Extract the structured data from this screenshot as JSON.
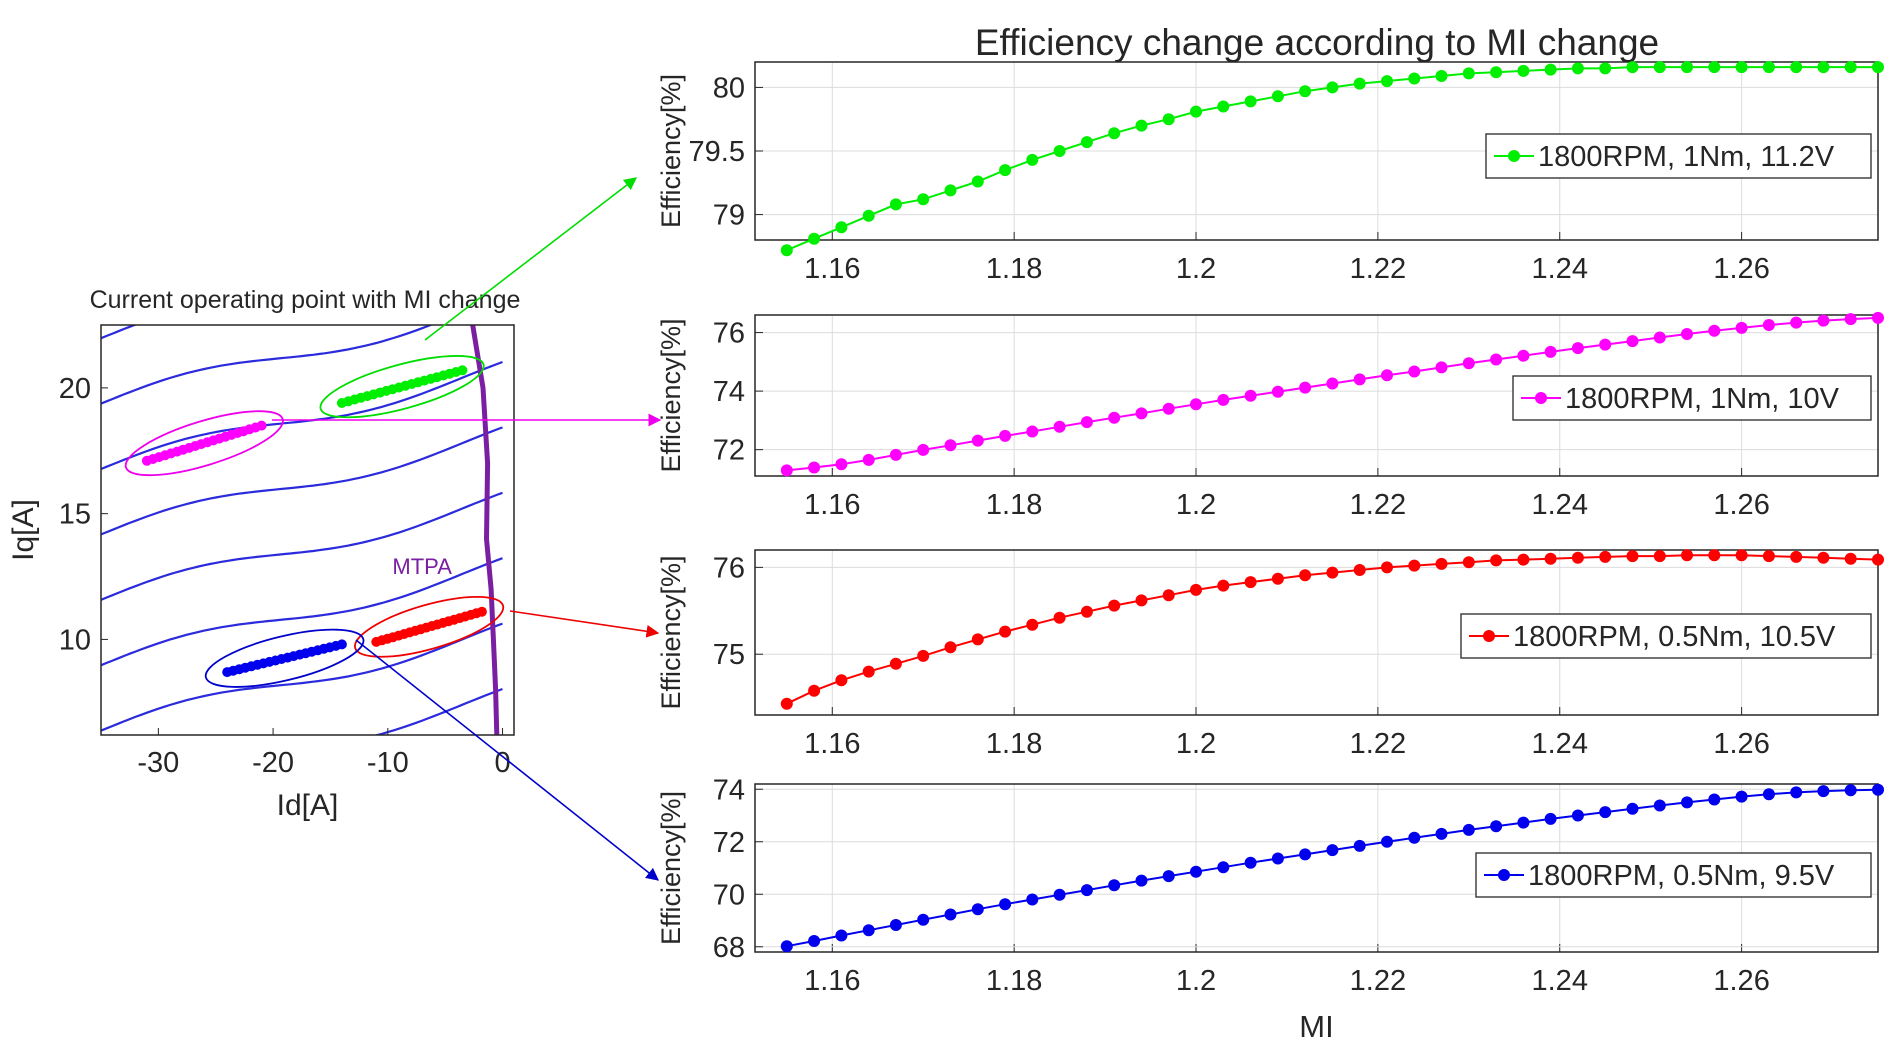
{
  "figure_title": "Efficiency change according to MI change",
  "chart_data": [
    {
      "id": "operating-point",
      "type": "line",
      "title": "Current operating point with MI change",
      "xlabel": "Id[A]",
      "ylabel": "Iq[A]",
      "xlim": [
        -35,
        1
      ],
      "ylim": [
        6.2,
        22.5
      ],
      "xticks": [
        -30,
        -20,
        -10,
        0
      ],
      "yticks": [
        10,
        15,
        20
      ],
      "contour_color": "#2b2bdd",
      "contour_offsets": [
        5.2,
        7.8,
        10.4,
        13.0,
        15.6,
        18.2,
        20.8,
        23.4,
        26.0,
        28.6
      ],
      "mtpa": {
        "label": "MTPA",
        "color": "#7b1fa2",
        "points": [
          [
            -2.6,
            22.5
          ],
          [
            -1.7,
            20
          ],
          [
            -1.3,
            17
          ],
          [
            -1.4,
            14
          ],
          [
            -1.0,
            12
          ],
          [
            -0.8,
            10
          ],
          [
            -0.6,
            8
          ],
          [
            -0.5,
            6.2
          ]
        ]
      },
      "highlights": [
        {
          "name": "green",
          "color": "#00ee00",
          "start": [
            -14,
            19.4
          ],
          "end": [
            -3.5,
            20.7
          ],
          "ellipse_color": "#00dd00"
        },
        {
          "name": "magenta",
          "color": "#ff00ff",
          "start": [
            -31,
            17.1
          ],
          "end": [
            -21,
            18.5
          ],
          "ellipse_color": "#ee00ee"
        },
        {
          "name": "red",
          "color": "#ff0000",
          "start": [
            -11,
            9.9
          ],
          "end": [
            -1.8,
            11.1
          ],
          "ellipse_color": "#ee0000"
        },
        {
          "name": "blue",
          "color": "#0000ee",
          "start": [
            -24,
            8.7
          ],
          "end": [
            -14,
            9.8
          ],
          "ellipse_color": "#0000cc"
        }
      ]
    },
    {
      "id": "eff-green",
      "type": "line",
      "xlabel": "",
      "ylabel": "Efficiency[%]",
      "xlim": [
        1.1515,
        1.275
      ],
      "ylim": [
        78.8,
        80.2
      ],
      "xticks": [
        1.16,
        1.18,
        1.2,
        1.22,
        1.24,
        1.26
      ],
      "xtick_labels": [
        "1.16",
        "1.18",
        "1.2",
        "1.22",
        "1.24",
        "1.26"
      ],
      "yticks": [
        79,
        79.5,
        80
      ],
      "ytick_labels": [
        "79",
        "79.5",
        "80"
      ],
      "series": [
        {
          "name": "1800RPM, 1Nm, 11.2V",
          "color": "#00ee00",
          "x_start": 1.155,
          "x_step": 0.003,
          "values": [
            78.72,
            78.81,
            78.9,
            78.99,
            79.08,
            79.12,
            79.19,
            79.26,
            79.35,
            79.43,
            79.5,
            79.57,
            79.64,
            79.7,
            79.75,
            79.81,
            79.85,
            79.89,
            79.93,
            79.97,
            80.0,
            80.03,
            80.05,
            80.07,
            80.09,
            80.11,
            80.12,
            80.13,
            80.14,
            80.15,
            80.15,
            80.16,
            80.16,
            80.16,
            80.16,
            80.16,
            80.16,
            80.16,
            80.16,
            80.16,
            80.16
          ]
        }
      ],
      "legend_position": "right"
    },
    {
      "id": "eff-magenta",
      "type": "line",
      "xlabel": "",
      "ylabel": "Efficiency[%]",
      "xlim": [
        1.1515,
        1.275
      ],
      "ylim": [
        71.1,
        76.6
      ],
      "xticks": [
        1.16,
        1.18,
        1.2,
        1.22,
        1.24,
        1.26
      ],
      "xtick_labels": [
        "1.16",
        "1.18",
        "1.2",
        "1.22",
        "1.24",
        "1.26"
      ],
      "yticks": [
        72,
        74,
        76
      ],
      "ytick_labels": [
        "72",
        "74",
        "76"
      ],
      "series": [
        {
          "name": "1800RPM, 1Nm, 10V",
          "color": "#ff00ff",
          "x_start": 1.155,
          "x_step": 0.003,
          "values": [
            71.29,
            71.39,
            71.5,
            71.65,
            71.82,
            71.99,
            72.15,
            72.31,
            72.47,
            72.62,
            72.78,
            72.94,
            73.09,
            73.24,
            73.4,
            73.55,
            73.7,
            73.84,
            73.98,
            74.12,
            74.26,
            74.4,
            74.54,
            74.67,
            74.81,
            74.95,
            75.08,
            75.21,
            75.34,
            75.47,
            75.59,
            75.71,
            75.83,
            75.95,
            76.06,
            76.16,
            76.26,
            76.34,
            76.41,
            76.46,
            76.5
          ]
        }
      ],
      "legend_position": "right"
    },
    {
      "id": "eff-red",
      "type": "line",
      "xlabel": "",
      "ylabel": "Efficiency[%]",
      "xlim": [
        1.1515,
        1.275
      ],
      "ylim": [
        74.3,
        76.2
      ],
      "xticks": [
        1.16,
        1.18,
        1.2,
        1.22,
        1.24,
        1.26
      ],
      "xtick_labels": [
        "1.16",
        "1.18",
        "1.2",
        "1.22",
        "1.24",
        "1.26"
      ],
      "yticks": [
        75,
        76
      ],
      "ytick_labels": [
        "75",
        "76"
      ],
      "series": [
        {
          "name": "1800RPM, 0.5Nm, 10.5V",
          "color": "#ff0000",
          "x_start": 1.155,
          "x_step": 0.003,
          "values": [
            74.43,
            74.58,
            74.7,
            74.8,
            74.89,
            74.98,
            75.08,
            75.17,
            75.26,
            75.34,
            75.42,
            75.49,
            75.56,
            75.62,
            75.68,
            75.74,
            75.79,
            75.83,
            75.87,
            75.91,
            75.94,
            75.97,
            76.0,
            76.02,
            76.04,
            76.06,
            76.08,
            76.09,
            76.1,
            76.11,
            76.12,
            76.13,
            76.13,
            76.14,
            76.14,
            76.14,
            76.13,
            76.12,
            76.11,
            76.1,
            76.09
          ]
        }
      ],
      "legend_position": "right"
    },
    {
      "id": "eff-blue",
      "type": "line",
      "xlabel": "MI",
      "ylabel": "Efficiency[%]",
      "xlim": [
        1.1515,
        1.275
      ],
      "ylim": [
        67.8,
        74.2
      ],
      "xticks": [
        1.16,
        1.18,
        1.2,
        1.22,
        1.24,
        1.26
      ],
      "xtick_labels": [
        "1.16",
        "1.18",
        "1.2",
        "1.22",
        "1.24",
        "1.26"
      ],
      "yticks": [
        68,
        70,
        72,
        74
      ],
      "ytick_labels": [
        "68",
        "70",
        "72",
        "74"
      ],
      "series": [
        {
          "name": "1800RPM, 0.5Nm, 9.5V",
          "color": "#0000ee",
          "x_start": 1.155,
          "x_step": 0.003,
          "values": [
            68.02,
            68.22,
            68.43,
            68.63,
            68.83,
            69.03,
            69.23,
            69.43,
            69.62,
            69.8,
            69.98,
            70.16,
            70.34,
            70.52,
            70.69,
            70.86,
            71.03,
            71.2,
            71.36,
            71.52,
            71.68,
            71.84,
            72.0,
            72.15,
            72.3,
            72.45,
            72.59,
            72.73,
            72.87,
            73.0,
            73.13,
            73.26,
            73.38,
            73.5,
            73.61,
            73.72,
            73.81,
            73.88,
            73.93,
            73.96,
            73.98
          ]
        }
      ],
      "legend_position": "right"
    }
  ]
}
